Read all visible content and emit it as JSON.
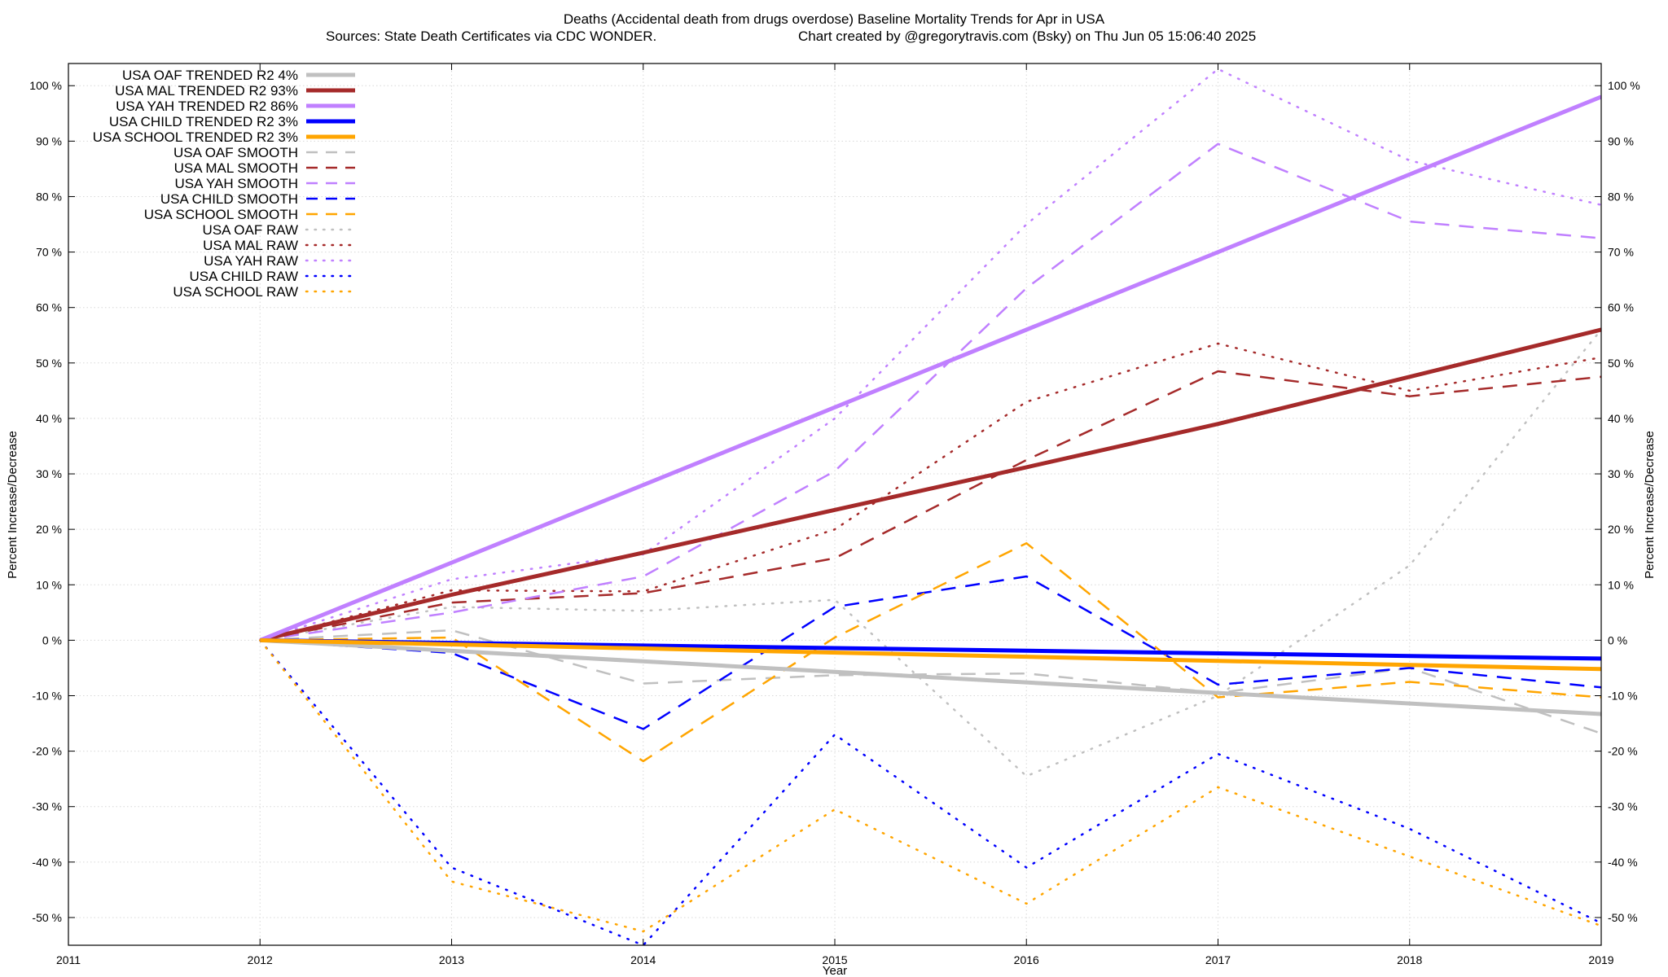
{
  "chart_data": {
    "type": "line",
    "title": "Deaths (Accidental death from drugs overdose)  Baseline Mortality Trends for Apr in USA",
    "subtitle_left": "Sources: State Death Certificates via CDC WONDER.",
    "subtitle_right": "Chart created by @gregorytravis.com (Bsky) on Thu Jun 05 15:06:40 2025",
    "xlabel": "Year",
    "ylabel_left": "Percent Increase/Decrease",
    "ylabel_right": "Percent Increase/Decrease",
    "xlim": [
      2011,
      2019
    ],
    "ylim": [
      -55,
      104
    ],
    "x_ticks": [
      {
        "value": 2011,
        "label": "2011"
      },
      {
        "value": 2012,
        "label": "2012"
      },
      {
        "value": 2013,
        "label": "2013"
      },
      {
        "value": 2014,
        "label": "2014"
      },
      {
        "value": 2015,
        "label": "2015"
      },
      {
        "value": 2016,
        "label": "2016"
      },
      {
        "value": 2017,
        "label": "2017"
      },
      {
        "value": 2018,
        "label": "2018"
      },
      {
        "value": 2019,
        "label": "2019"
      }
    ],
    "y_ticks": [
      {
        "value": 100,
        "label": "100 %"
      },
      {
        "value": 90,
        "label": "90 %"
      },
      {
        "value": 80,
        "label": "80 %"
      },
      {
        "value": 70,
        "label": "70 %"
      },
      {
        "value": 60,
        "label": "60 %"
      },
      {
        "value": 50,
        "label": "50 %"
      },
      {
        "value": 40,
        "label": "40 %"
      },
      {
        "value": 30,
        "label": "30 %"
      },
      {
        "value": 20,
        "label": "20 %"
      },
      {
        "value": 10,
        "label": "10 %"
      },
      {
        "value": 0,
        "label": "0 %"
      },
      {
        "value": -10,
        "label": "-10 %"
      },
      {
        "value": -20,
        "label": "-20 %"
      },
      {
        "value": -30,
        "label": "-30 %"
      },
      {
        "value": -40,
        "label": "-40 %"
      },
      {
        "value": -50,
        "label": "-50 %"
      }
    ],
    "grid": true,
    "legend_position": "top-left",
    "series": [
      {
        "name": "USA OAF TRENDED R2",
        "r2": "4%",
        "style": "trend",
        "color": "#c0c0c0",
        "x": [
          2012,
          2019
        ],
        "y": [
          0,
          -13.3
        ]
      },
      {
        "name": "USA MAL TRENDED R2",
        "r2": "93%",
        "style": "trend",
        "color": "#a52a2a",
        "x": [
          2012,
          2013,
          2014,
          2015,
          2016,
          2017,
          2018,
          2019
        ],
        "y": [
          0,
          8.2,
          15.8,
          23.5,
          31.2,
          39.0,
          47.5,
          56.0
        ]
      },
      {
        "name": "USA YAH TRENDED R2",
        "r2": "86%",
        "style": "trend",
        "color": "#c080ff",
        "x": [
          2012,
          2019
        ],
        "y": [
          0,
          98.0
        ]
      },
      {
        "name": "USA CHILD TRENDED R2",
        "r2": "3%",
        "style": "trend",
        "color": "#0000ff",
        "x": [
          2012,
          2019
        ],
        "y": [
          0,
          -3.3
        ]
      },
      {
        "name": "USA SCHOOL TRENDED R2",
        "r2": "3%",
        "style": "trend",
        "color": "#ffa500",
        "x": [
          2012,
          2019
        ],
        "y": [
          0,
          -5.2
        ]
      },
      {
        "name": "USA OAF SMOOTH",
        "style": "smooth",
        "color": "#c0c0c0",
        "x": [
          2012,
          2013,
          2014,
          2015,
          2016,
          2017,
          2018,
          2019
        ],
        "y": [
          0,
          1.8,
          -7.8,
          -6.3,
          -6.0,
          -9.5,
          -5.0,
          -16.8
        ]
      },
      {
        "name": "USA MAL SMOOTH",
        "style": "smooth",
        "color": "#a52a2a",
        "x": [
          2012,
          2013,
          2014,
          2015,
          2016,
          2017,
          2018,
          2019
        ],
        "y": [
          0,
          6.8,
          8.5,
          14.8,
          32.5,
          48.5,
          44.0,
          47.5
        ]
      },
      {
        "name": "USA YAH SMOOTH",
        "style": "smooth",
        "color": "#c080ff",
        "x": [
          2012,
          2013,
          2014,
          2015,
          2016,
          2017,
          2018,
          2019
        ],
        "y": [
          0,
          5.0,
          11.5,
          30.5,
          63.5,
          89.5,
          75.5,
          72.5
        ]
      },
      {
        "name": "USA CHILD SMOOTH",
        "style": "smooth",
        "color": "#0000ff",
        "x": [
          2012,
          2013,
          2014,
          2015,
          2016,
          2017,
          2018,
          2019
        ],
        "y": [
          0,
          -2.3,
          -16.0,
          6.0,
          11.5,
          -8.0,
          -5.0,
          -8.5
        ]
      },
      {
        "name": "USA SCHOOL SMOOTH",
        "style": "smooth",
        "color": "#ffa500",
        "x": [
          2012,
          2013,
          2014,
          2015,
          2016,
          2017,
          2018,
          2019
        ],
        "y": [
          0,
          0.5,
          -21.8,
          0.5,
          17.5,
          -10.3,
          -7.5,
          -10.3
        ]
      },
      {
        "name": "USA OAF RAW",
        "style": "raw",
        "color": "#c0c0c0",
        "x": [
          2012,
          2013,
          2014,
          2015,
          2016,
          2017,
          2018,
          2019
        ],
        "y": [
          0,
          6.0,
          5.3,
          7.3,
          -24.5,
          -10.0,
          13.5,
          56.0
        ]
      },
      {
        "name": "USA MAL RAW",
        "style": "raw",
        "color": "#a52a2a",
        "x": [
          2012,
          2013,
          2014,
          2015,
          2016,
          2017,
          2018,
          2019
        ],
        "y": [
          0,
          9.0,
          8.8,
          20.0,
          43.0,
          53.5,
          45.0,
          51.0
        ]
      },
      {
        "name": "USA YAH RAW",
        "style": "raw",
        "color": "#c080ff",
        "x": [
          2012,
          2013,
          2014,
          2015,
          2016,
          2017,
          2018,
          2019
        ],
        "y": [
          0,
          11.0,
          15.5,
          40.0,
          75.0,
          103.0,
          86.5,
          78.5
        ]
      },
      {
        "name": "USA CHILD RAW",
        "style": "raw",
        "color": "#0000ff",
        "x": [
          2012,
          2013,
          2014,
          2015,
          2016,
          2017,
          2018,
          2019
        ],
        "y": [
          0,
          -41.0,
          -55.0,
          -17.0,
          -41.0,
          -20.5,
          -34.0,
          -51.0
        ]
      },
      {
        "name": "USA SCHOOL RAW",
        "style": "raw",
        "color": "#ffa500",
        "x": [
          2012,
          2013,
          2014,
          2015,
          2016,
          2017,
          2018,
          2019
        ],
        "y": [
          0,
          -43.5,
          -52.5,
          -30.5,
          -47.5,
          -26.5,
          -39.0,
          -51.5
        ]
      }
    ]
  }
}
